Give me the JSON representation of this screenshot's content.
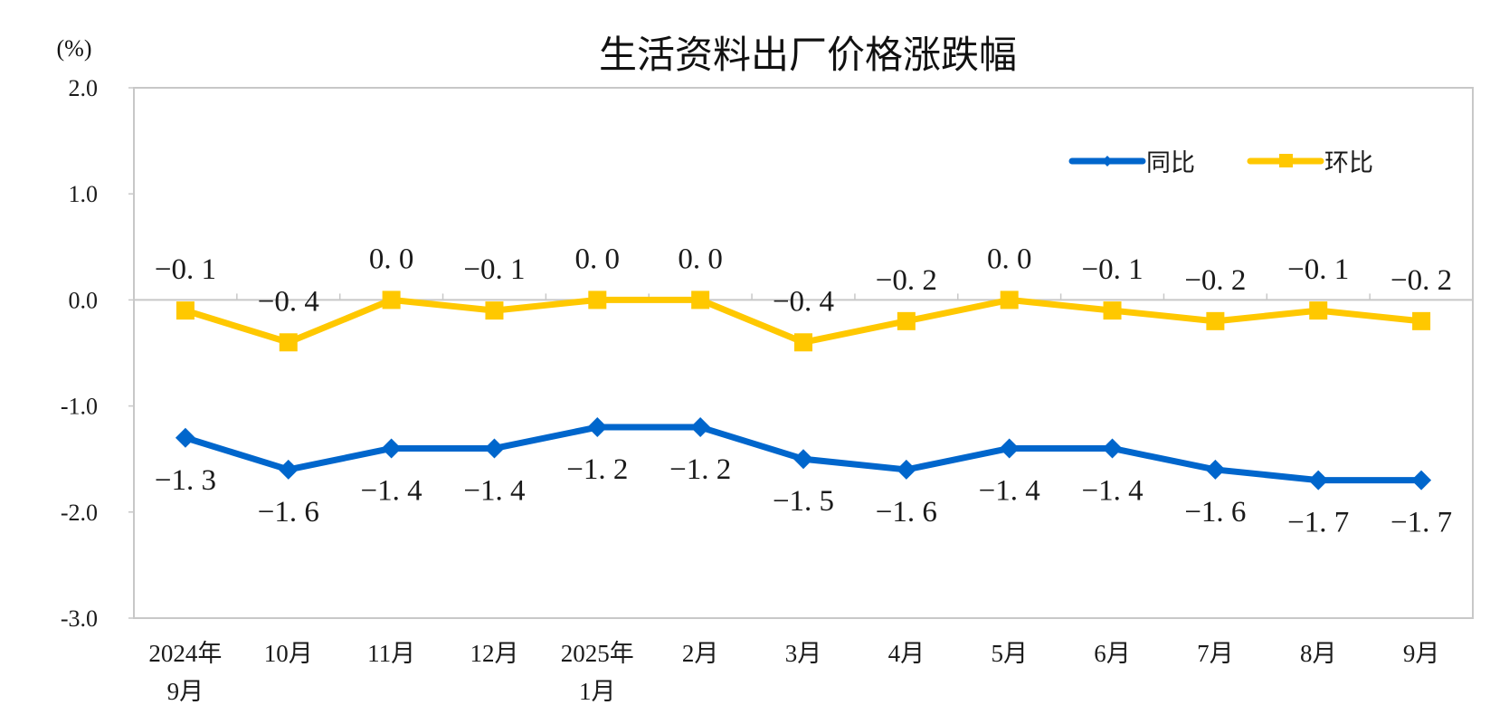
{
  "chart_data": {
    "type": "line",
    "title": "生活资料出厂价格涨跌幅",
    "ylabel": "(%)",
    "xlabel": "",
    "ylim": [
      -3.0,
      2.0
    ],
    "yticks": [
      "2.0",
      "1.0",
      "0.0",
      "-1.0",
      "-2.0",
      "-3.0"
    ],
    "ytick_values": [
      2.0,
      1.0,
      0.0,
      -1.0,
      -2.0,
      -3.0
    ],
    "grid": false,
    "legend_position": "upper right (inside plot)",
    "categories": [
      [
        "2024年",
        "9月"
      ],
      [
        "10月"
      ],
      [
        "11月"
      ],
      [
        "12月"
      ],
      [
        "2025年",
        "1月"
      ],
      [
        "2月"
      ],
      [
        "3月"
      ],
      [
        "4月"
      ],
      [
        "5月"
      ],
      [
        "6月"
      ],
      [
        "7月"
      ],
      [
        "8月"
      ],
      [
        "9月"
      ]
    ],
    "series": [
      {
        "name": "同比",
        "color": "#0066CC",
        "marker": "diamond",
        "label_position": "below",
        "values": [
          -1.3,
          -1.6,
          -1.4,
          -1.4,
          -1.2,
          -1.2,
          -1.5,
          -1.6,
          -1.4,
          -1.4,
          -1.6,
          -1.7,
          -1.7
        ],
        "labels": [
          "−1. 3",
          "−1. 6",
          "−1. 4",
          "−1. 4",
          "−1. 2",
          "−1. 2",
          "−1. 5",
          "−1. 6",
          "−1. 4",
          "−1. 4",
          "−1. 6",
          "−1. 7",
          "−1. 7"
        ]
      },
      {
        "name": "环比",
        "color": "#FFC800",
        "marker": "square",
        "label_position": "above",
        "values": [
          -0.1,
          -0.4,
          0.0,
          -0.1,
          0.0,
          0.0,
          -0.4,
          -0.2,
          0.0,
          -0.1,
          -0.2,
          -0.1,
          -0.2
        ],
        "labels": [
          "−0. 1",
          "−0. 4",
          "0. 0",
          "−0. 1",
          "0. 0",
          "0. 0",
          "−0. 4",
          "−0. 2",
          "0. 0",
          "−0. 1",
          "−0. 2",
          "−0. 1",
          "−0. 2"
        ]
      }
    ]
  },
  "colors": {
    "axis": "#C8C8C8",
    "text": "#1A1A1A"
  }
}
